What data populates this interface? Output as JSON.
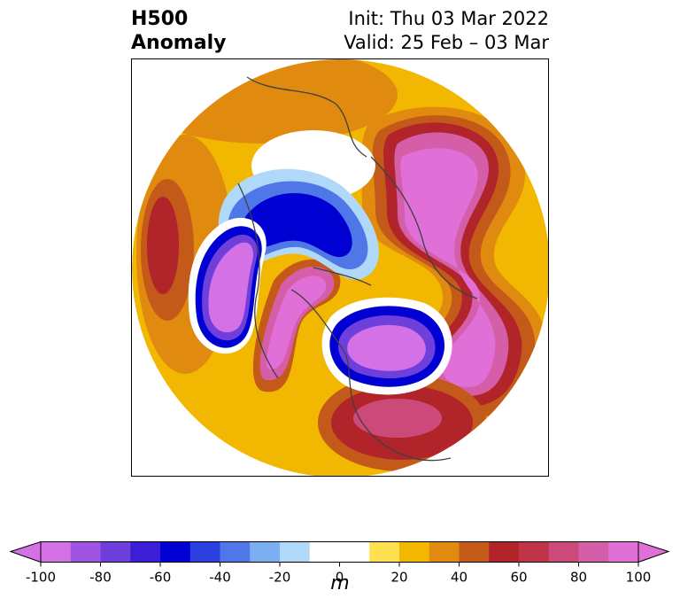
{
  "title": {
    "left_line1": "H500",
    "left_line2": "Anomaly",
    "right_line1": "Init: Thu 03 Mar 2022",
    "right_line2": "Valid: 25 Feb – 03 Mar"
  },
  "colorbar": {
    "unit": "m",
    "ticks": [
      "-100",
      "-80",
      "-60",
      "-40",
      "-20",
      "0",
      "20",
      "40",
      "60",
      "80",
      "100"
    ],
    "levels": [
      -100,
      -90,
      -80,
      -70,
      -60,
      -50,
      -40,
      -30,
      -20,
      -10,
      10,
      20,
      30,
      40,
      50,
      60,
      70,
      80,
      90,
      100
    ],
    "colors": [
      "#d471e6",
      "#9f55e2",
      "#6f3fdc",
      "#3c1ed6",
      "#0000d2",
      "#2a3fde",
      "#4f77e8",
      "#7ab0f3",
      "#b0d8f8",
      "#ffffff",
      "#ffe050",
      "#f2b700",
      "#e08a10",
      "#c45a1a",
      "#b0242a",
      "#c0344a",
      "#cc4a7a",
      "#d55ea8",
      "#e070d8"
    ],
    "under_color": "#d471e6",
    "over_color": "#e070d8"
  },
  "map": {
    "projection": "north-polar",
    "variable": "500 hPa geopotential height anomaly"
  }
}
